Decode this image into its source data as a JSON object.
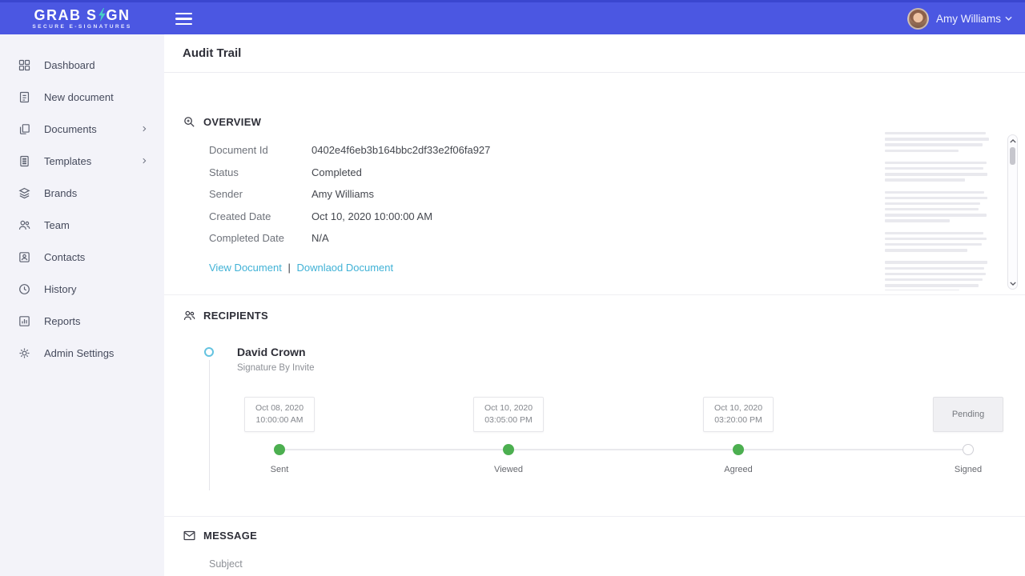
{
  "header": {
    "logo_first": "GRAB S",
    "logo_last": "GN",
    "tagline": "SECURE E-SIGNATURES",
    "user": {
      "name": "Amy Williams"
    }
  },
  "sidebar": {
    "items": [
      {
        "label": "Dashboard"
      },
      {
        "label": "New document"
      },
      {
        "label": "Documents"
      },
      {
        "label": "Templates"
      },
      {
        "label": "Brands"
      },
      {
        "label": "Team"
      },
      {
        "label": "Contacts"
      },
      {
        "label": "History"
      },
      {
        "label": "Reports"
      },
      {
        "label": "Admin Settings"
      }
    ]
  },
  "page": {
    "title": "Audit Trail"
  },
  "overview": {
    "heading": "OVERVIEW",
    "fields": [
      {
        "label": "Document Id",
        "value": "0402e4f6eb3b164bbc2df33e2f06fa927"
      },
      {
        "label": "Status",
        "value": "Completed"
      },
      {
        "label": "Sender",
        "value": "Amy Williams"
      },
      {
        "label": "Created Date",
        "value": "Oct 10, 2020 10:00:00 AM"
      },
      {
        "label": "Completed Date",
        "value": "N/A"
      }
    ],
    "links": {
      "view": "View Document",
      "separator": "|",
      "download": "Downlaod Document"
    }
  },
  "recipients": {
    "heading": "RECIPIENTS",
    "name": "David Crown",
    "method": "Signature By Invite",
    "steps": [
      {
        "label": "Sent",
        "line1": "Oct 08, 2020",
        "line2": "10:00:00 AM",
        "status": "done"
      },
      {
        "label": "Viewed",
        "line1": "Oct 10, 2020",
        "line2": "03:05:00 PM",
        "status": "done"
      },
      {
        "label": "Agreed",
        "line1": "Oct 10, 2020",
        "line2": "03:20:00 PM",
        "status": "done"
      },
      {
        "label": "Signed",
        "badge": "Pending",
        "status": "pending"
      }
    ]
  },
  "message": {
    "heading": "MESSAGE",
    "subject_label": "Subject"
  },
  "colors": {
    "header_bg": "#4b57e2",
    "header_border": "#3a46cf",
    "accent_teal": "#44d0c5",
    "sidebar_bg": "#f3f3f9",
    "link_blue": "#41b2d6",
    "step_done_green": "#4caf50",
    "recipient_bullet_blue": "#64c3e0"
  }
}
